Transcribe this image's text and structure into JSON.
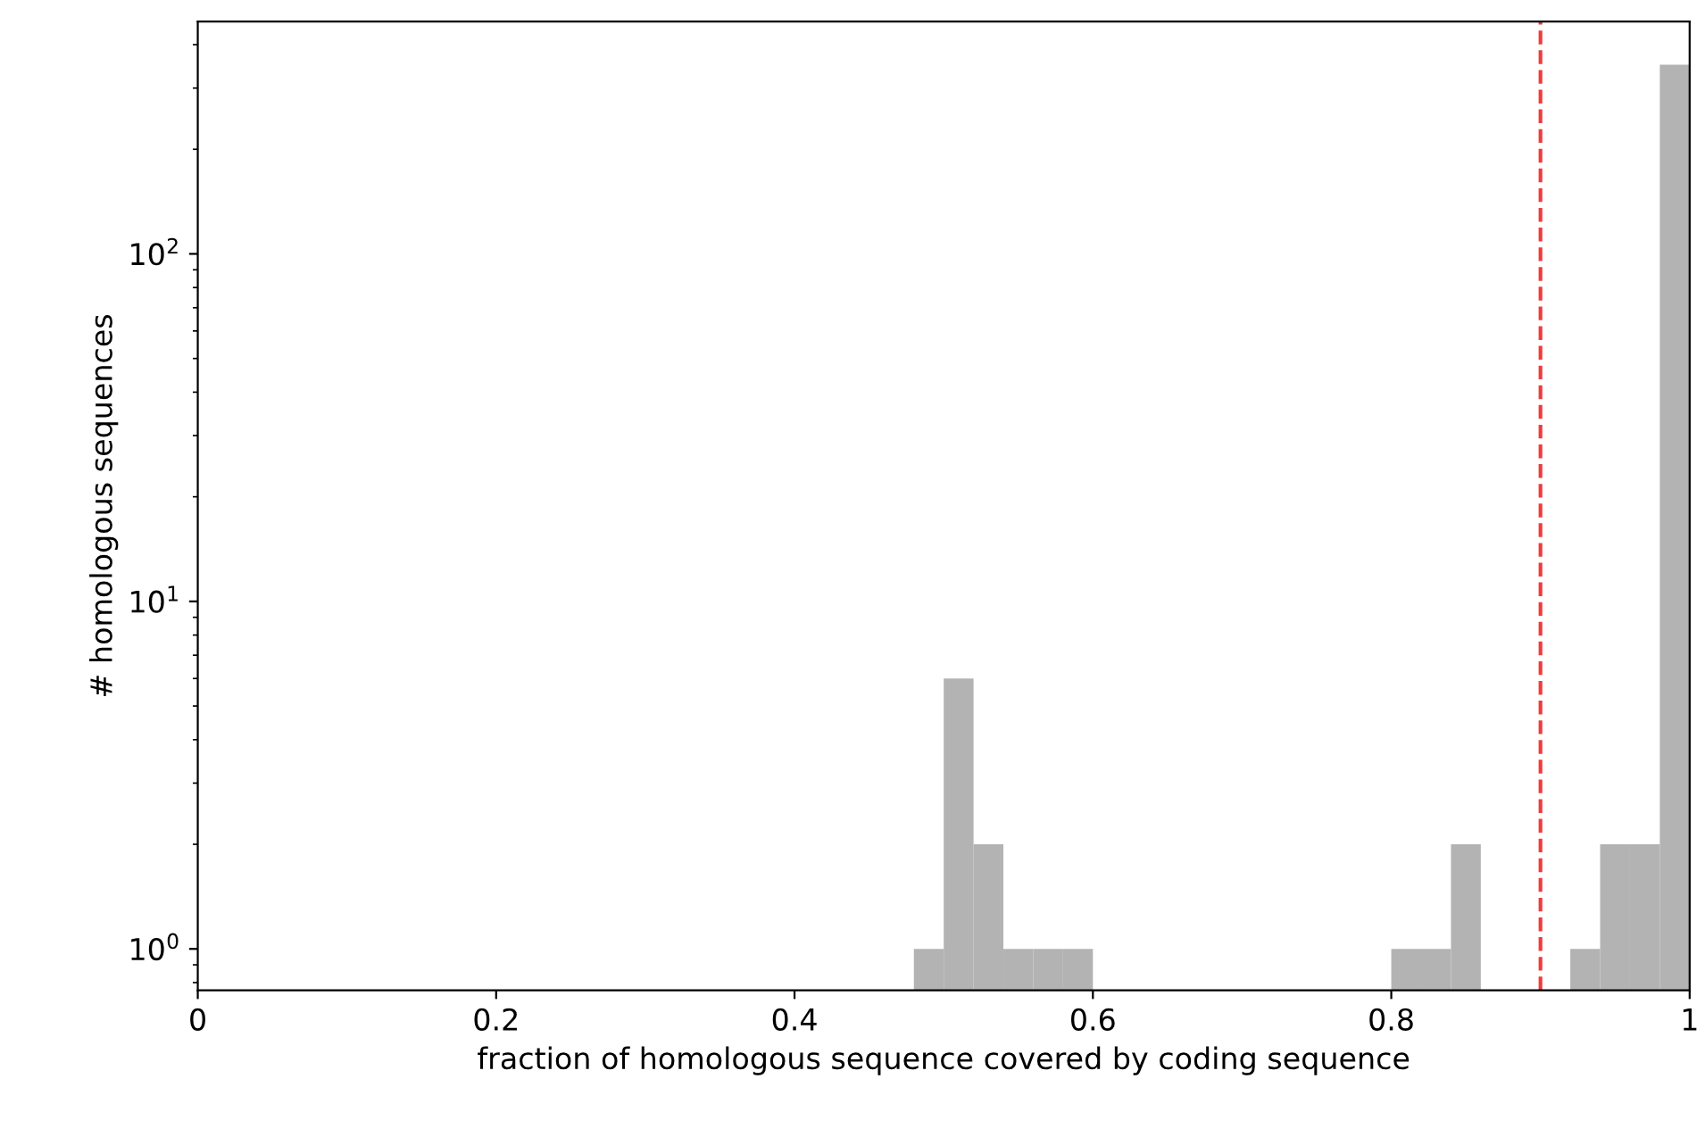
{
  "chart_data": {
    "type": "histogram",
    "xlabel": "fraction of homologous sequence covered by coding sequence",
    "ylabel": "# homologous sequences",
    "bins": [
      0.48,
      0.5,
      0.52,
      0.54,
      0.56,
      0.58,
      0.6,
      0.62,
      0.64,
      0.66,
      0.68,
      0.7,
      0.72,
      0.74,
      0.76,
      0.78,
      0.8,
      0.82,
      0.84,
      0.86,
      0.88,
      0.9,
      0.92,
      0.94,
      0.96,
      0.98,
      1.0
    ],
    "values": [
      1,
      6,
      2,
      1,
      1,
      1,
      null,
      null,
      null,
      null,
      null,
      null,
      null,
      null,
      null,
      null,
      1,
      1,
      2,
      null,
      null,
      null,
      1,
      2,
      2,
      350
    ],
    "color": "#b3b3b3",
    "log": "y",
    "xlim": [
      0,
      1
    ],
    "ylim": [
      0.76,
      466
    ],
    "xticks": [
      0,
      0.2,
      0.4,
      0.6,
      0.8,
      {
        "value": 1,
        "label": "1"
      }
    ],
    "yticks": [
      {
        "value": 1,
        "label": "10$^{0}$"
      },
      {
        "value": 10,
        "label": "10$^{1}$"
      },
      {
        "value": 100,
        "label": "10$^{2}$"
      }
    ],
    "ref_lines": [
      {
        "axis": "x",
        "value": 0.9,
        "label": null,
        "color": "#f03c3c",
        "line_style": "dashed"
      }
    ],
    "grid": false
  }
}
